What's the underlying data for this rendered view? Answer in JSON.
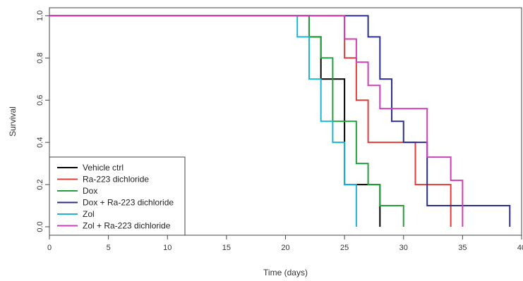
{
  "chart_data": {
    "type": "line",
    "subtype": "step",
    "xlabel": "Time (days)",
    "ylabel": "Survival",
    "xlim": [
      0,
      40
    ],
    "ylim": [
      0,
      1
    ],
    "xticks": [
      0,
      5,
      10,
      15,
      20,
      25,
      30,
      35,
      40
    ],
    "yticks": [
      0.0,
      0.2,
      0.4,
      0.6,
      0.8,
      1.0
    ],
    "xtick_labels": [
      "0",
      "5",
      "10",
      "15",
      "20",
      "25",
      "30",
      "35",
      "40"
    ],
    "ytick_labels": [
      "0.0",
      "0.2",
      "0.4",
      "0.6",
      "0.8",
      "1.0"
    ],
    "grid": false,
    "legend_position": "bottom-left",
    "series": [
      {
        "name": "Vehicle ctrl",
        "color": "#000000",
        "steps": [
          [
            0,
            1.0
          ],
          [
            22,
            0.9
          ],
          [
            23,
            0.7
          ],
          [
            25,
            0.2
          ],
          [
            28,
            0.0
          ]
        ]
      },
      {
        "name": "Ra-223 dichloride",
        "color": "#e03c3c",
        "steps": [
          [
            0,
            1.0
          ],
          [
            25,
            0.8
          ],
          [
            26,
            0.6
          ],
          [
            27,
            0.4
          ],
          [
            31,
            0.2
          ],
          [
            34,
            0.0
          ]
        ]
      },
      {
        "name": "Dox",
        "color": "#22a03c",
        "steps": [
          [
            0,
            1.0
          ],
          [
            22,
            0.9
          ],
          [
            23,
            0.8
          ],
          [
            24,
            0.5
          ],
          [
            26,
            0.3
          ],
          [
            27,
            0.2
          ],
          [
            28,
            0.1
          ],
          [
            30,
            0.0
          ]
        ]
      },
      {
        "name": "Dox + Ra-223 dichloride",
        "color": "#2b2d8f",
        "steps": [
          [
            0,
            1.0
          ],
          [
            27,
            0.9
          ],
          [
            28,
            0.7
          ],
          [
            29,
            0.5
          ],
          [
            30,
            0.4
          ],
          [
            32,
            0.1
          ],
          [
            39,
            0.0
          ]
        ]
      },
      {
        "name": "Zol",
        "color": "#1bb5d1",
        "steps": [
          [
            0,
            1.0
          ],
          [
            21,
            0.9
          ],
          [
            22,
            0.7
          ],
          [
            23,
            0.5
          ],
          [
            24,
            0.4
          ],
          [
            25,
            0.2
          ],
          [
            26,
            0.0
          ]
        ]
      },
      {
        "name": "Zol + Ra-223 dichloride",
        "color": "#cf3fb4",
        "steps": [
          [
            0,
            1.0
          ],
          [
            25,
            0.89
          ],
          [
            26,
            0.78
          ],
          [
            27,
            0.67
          ],
          [
            28,
            0.56
          ],
          [
            32,
            0.33
          ],
          [
            34,
            0.22
          ],
          [
            35,
            0.0
          ]
        ]
      }
    ]
  }
}
